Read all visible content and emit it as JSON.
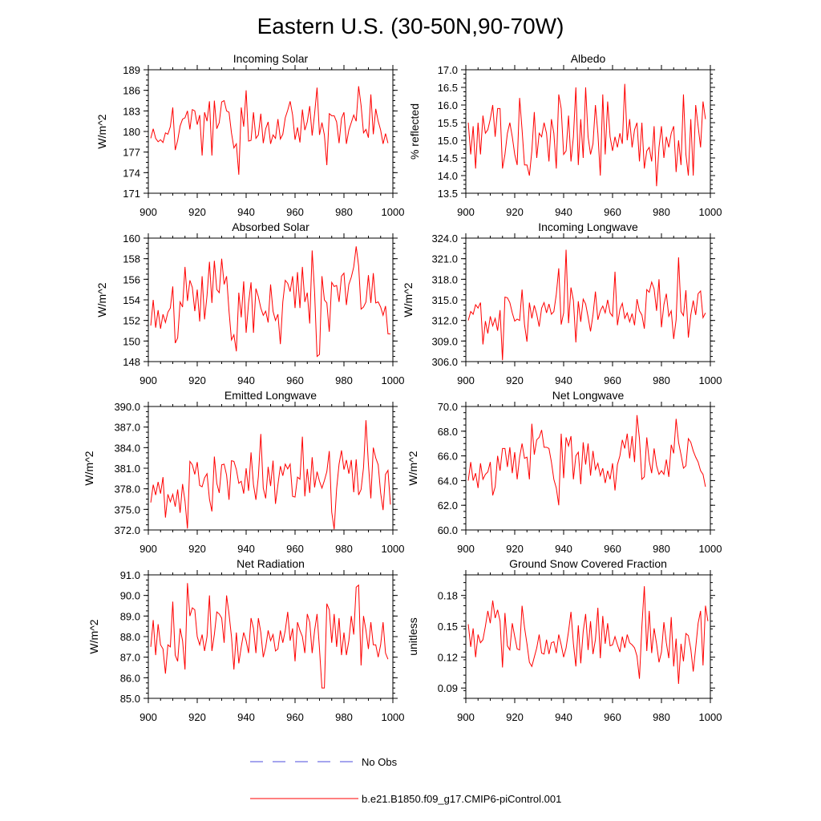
{
  "figure_title": "Eastern U.S. (30-50N,90-70W)",
  "legend": {
    "entries": [
      {
        "label": "No Obs",
        "color": "#4b4bdc",
        "style": "dashed"
      },
      {
        "label": "b.e21.B1850.f09_g17.CMIP6-piControl.001",
        "color": "#ff0000",
        "style": "solid"
      }
    ]
  },
  "chart_data": [
    {
      "type": "line",
      "title": "Incoming Solar",
      "ylabel": "W/m^2",
      "xlim": [
        900,
        1000
      ],
      "xticks": [
        "900",
        "920",
        "940",
        "960",
        "980",
        "1000"
      ],
      "ylim": [
        171,
        189
      ],
      "yticks": [
        "171",
        "174",
        "177",
        "180",
        "183",
        "186",
        "189"
      ],
      "series": [
        {
          "name": "b.e21.B1850.f09_g17.CMIP6-piControl.001",
          "x_start": 901,
          "values": [
            179,
            180.4,
            179,
            178.5,
            178.8,
            178.4,
            179.8,
            179.6,
            180.7,
            183.5,
            177.3,
            178.7,
            180.8,
            181.8,
            182,
            183,
            180.3,
            183.2,
            183,
            181,
            182.4,
            176.5,
            182.8,
            181.5,
            184.4,
            176.5,
            184.5,
            180.4,
            181.3,
            184.3,
            184.5,
            183,
            182.8,
            179.8,
            177.6,
            178.2,
            173.7,
            183.5,
            180.7,
            186,
            178.6,
            178.7,
            182.8,
            179,
            179.5,
            182.6,
            178.3,
            180.4,
            181.4,
            178.2,
            179.5,
            179,
            181.8,
            178.9,
            179.6,
            182,
            183.1,
            184.4,
            182.4,
            178.8,
            180.6,
            178.4,
            183.2,
            180.2,
            181.4,
            183.7,
            179.4,
            182.6,
            186.4,
            179.5,
            181.3,
            179.5,
            175.1,
            182.6,
            182.3,
            182.3,
            181.4,
            178.3,
            181.9,
            182.8,
            178.2,
            180.2,
            181.3,
            182.4,
            181.5,
            186.6,
            183.8,
            179.8,
            180.3,
            179.1,
            185.4,
            179.6,
            183.3,
            181.5,
            180.2,
            178.2,
            179.7,
            178.3
          ]
        }
      ]
    },
    {
      "type": "line",
      "title": "Albedo",
      "ylabel": "% reflected",
      "xlim": [
        900,
        1000
      ],
      "xticks": [
        "900",
        "920",
        "940",
        "960",
        "980",
        "1000"
      ],
      "ylim": [
        13.5,
        17.0
      ],
      "yticks": [
        "13.5",
        "14.0",
        "14.5",
        "15.0",
        "15.5",
        "16.0",
        "16.5",
        "17.0"
      ],
      "series": [
        {
          "name": "b.e21.B1850.f09_g17.CMIP6-piControl.001",
          "x_start": 901,
          "values": [
            15.5,
            14.6,
            15.4,
            14.2,
            15.5,
            14.6,
            15.7,
            15.2,
            15.3,
            15.6,
            16,
            15.1,
            15.9,
            15.9,
            14.2,
            14.6,
            15.2,
            15.5,
            15.1,
            14.6,
            14.3,
            16.2,
            15.3,
            14.3,
            14.3,
            14,
            14.7,
            15.8,
            14.5,
            15.2,
            15.1,
            15.5,
            15.2,
            14.4,
            15.6,
            15.2,
            14.2,
            16.3,
            15.9,
            14.6,
            14.7,
            15.7,
            14.4,
            15.1,
            16.5,
            14.3,
            15.6,
            14.5,
            16.5,
            15.1,
            14.6,
            14.9,
            16,
            15.2,
            14,
            16.3,
            14.6,
            16.1,
            15.1,
            14.7,
            15.1,
            14.8,
            15.2,
            14.9,
            16.6,
            15,
            15.6,
            14.8,
            15.3,
            15.5,
            14.4,
            15.5,
            14.2,
            14.7,
            14.8,
            14.4,
            15.4,
            13.7,
            14.8,
            15.4,
            14.5,
            15.1,
            14.8,
            15.2,
            15.4,
            14.1,
            15,
            14.3,
            16.3,
            14.6,
            14,
            15.6,
            14,
            16,
            15.4,
            14.8,
            16.1,
            15.6
          ]
        }
      ]
    },
    {
      "type": "line",
      "title": "Absorbed Solar",
      "ylabel": "W/m^2",
      "xlim": [
        900,
        1000
      ],
      "xticks": [
        "900",
        "920",
        "940",
        "960",
        "980",
        "1000"
      ],
      "ylim": [
        148,
        160
      ],
      "yticks": [
        "148",
        "150",
        "152",
        "154",
        "156",
        "158",
        "160"
      ],
      "series": [
        {
          "name": "b.e21.B1850.f09_g17.CMIP6-piControl.001",
          "x_start": 901,
          "values": [
            151.5,
            154,
            151.3,
            153,
            151.2,
            152.6,
            151.8,
            152.8,
            153.2,
            155.3,
            149.8,
            150.3,
            153.8,
            153.3,
            157.2,
            153.9,
            155.9,
            155.2,
            152.9,
            155,
            151.9,
            156.3,
            152.1,
            154.4,
            157.7,
            153.7,
            157.8,
            155,
            154.7,
            158,
            155.5,
            156.3,
            152.9,
            150.1,
            150.6,
            149,
            154.7,
            152.3,
            155.8,
            150.8,
            153.7,
            155.7,
            150.8,
            155.1,
            154.3,
            153.2,
            152.5,
            152.9,
            151.8,
            155.5,
            152.9,
            152,
            152.6,
            149.7,
            153.8,
            155.9,
            155.6,
            154.8,
            156.3,
            153.2,
            156.7,
            153.2,
            157.2,
            153.8,
            154.7,
            151.7,
            158.8,
            154.7,
            148.5,
            148.7,
            156.3,
            154,
            153.7,
            150.9,
            155.7,
            155.3,
            155.4,
            153.8,
            156.3,
            156.6,
            153.5,
            155.5,
            156.2,
            157.2,
            159.2,
            157.3,
            153.1,
            153.3,
            153.8,
            156.4,
            153.7,
            156.6,
            153.7,
            153.8,
            153.3,
            152.5,
            153.4,
            150.7,
            150.7
          ]
        }
      ]
    },
    {
      "type": "line",
      "title": "Incoming Longwave",
      "ylabel": "W/m^2",
      "xlim": [
        900,
        1000
      ],
      "xticks": [
        "900",
        "920",
        "940",
        "960",
        "980",
        "1000"
      ],
      "ylim": [
        306.0,
        324.0
      ],
      "yticks": [
        "306.0",
        "309.0",
        "312.0",
        "315.0",
        "318.0",
        "321.0",
        "324.0"
      ],
      "series": [
        {
          "name": "b.e21.B1850.f09_g17.CMIP6-piControl.001",
          "x_start": 901,
          "values": [
            312,
            313.3,
            312.9,
            314.3,
            313.8,
            314.6,
            308.5,
            311.9,
            310.1,
            312.6,
            311.2,
            312.3,
            310.5,
            313.5,
            306.2,
            315.4,
            315.3,
            314.6,
            313.1,
            311.9,
            312.2,
            312,
            316.5,
            311.4,
            308.9,
            314.6,
            312.3,
            314.2,
            312.9,
            311.1,
            313.8,
            314.6,
            313.1,
            314.4,
            312.9,
            313.3,
            315.8,
            319.6,
            311.4,
            313.1,
            322.3,
            311.6,
            316.8,
            314.9,
            308.8,
            314.8,
            311.8,
            315.1,
            314.4,
            312.5,
            310.4,
            312.8,
            316.2,
            312.1,
            313.4,
            314.1,
            313.1,
            315,
            313.1,
            312.6,
            319.1,
            311.3,
            313.6,
            314.5,
            312.3,
            313.1,
            311.8,
            313,
            311.3,
            315.1,
            313.4,
            312.8,
            310.8,
            316.5,
            316.1,
            317.6,
            316.6,
            313.4,
            318,
            311,
            314.3,
            315.9,
            312.6,
            313.4,
            309.3,
            312.1,
            321.2,
            313.3,
            312.7,
            316.4,
            309.5,
            312.8,
            314.9,
            312.8,
            315.9,
            316.3,
            312.4,
            313.1
          ]
        }
      ]
    },
    {
      "type": "line",
      "title": "Emitted Longwave",
      "ylabel": "W/m^2",
      "xlim": [
        900,
        1000
      ],
      "xticks": [
        "900",
        "920",
        "940",
        "960",
        "980",
        "1000"
      ],
      "ylim": [
        372.0,
        390.0
      ],
      "yticks": [
        "372.0",
        "375.0",
        "378.0",
        "381.0",
        "384.0",
        "387.0",
        "390.0"
      ],
      "series": [
        {
          "name": "b.e21.B1850.f09_g17.CMIP6-piControl.001",
          "x_start": 901,
          "values": [
            376,
            378.6,
            377.1,
            379,
            377.3,
            379.7,
            373.8,
            377.2,
            376.1,
            377.2,
            375.4,
            377.9,
            374.5,
            378.7,
            376.2,
            372.2,
            382,
            381.5,
            380.1,
            381.9,
            378.5,
            378.3,
            379.6,
            380.2,
            376.5,
            374.7,
            382.7,
            378.8,
            377.4,
            381.5,
            381.6,
            380,
            376.4,
            382.1,
            382,
            380.8,
            378.8,
            379.1,
            377.3,
            381,
            377.7,
            383.3,
            378.6,
            376.4,
            379.8,
            386,
            378.1,
            376.6,
            381.2,
            378.4,
            382.1,
            375.8,
            378.6,
            381.3,
            379.9,
            381.6,
            380.9,
            381.6,
            376.9,
            376.8,
            379.7,
            379.4,
            385.6,
            376.9,
            380.9,
            377.4,
            382.6,
            378.2,
            380.5,
            379.1,
            378.1,
            379.2,
            380.5,
            383.5,
            374.6,
            372.1,
            378,
            381.6,
            383.6,
            380.8,
            382.2,
            380.2,
            382.2,
            377.5,
            382.3,
            377.1,
            377.9,
            381.1,
            388,
            381.6,
            376.6,
            384,
            382.5,
            381.5,
            377.4,
            374.9,
            380.1,
            380.7,
            375.7
          ]
        }
      ]
    },
    {
      "type": "line",
      "title": "Net Longwave",
      "ylabel": "W/m^2",
      "xlim": [
        900,
        1000
      ],
      "xticks": [
        "900",
        "920",
        "940",
        "960",
        "980",
        "1000"
      ],
      "ylim": [
        60.0,
        70.0
      ],
      "yticks": [
        "60.0",
        "62.0",
        "64.0",
        "66.0",
        "68.0",
        "70.0"
      ],
      "series": [
        {
          "name": "b.e21.B1850.f09_g17.CMIP6-piControl.001",
          "x_start": 901,
          "values": [
            64,
            65.5,
            64,
            64.6,
            63.4,
            65.4,
            64.1,
            64.5,
            64.7,
            65.5,
            62.8,
            63.5,
            66,
            64.8,
            66.6,
            66.6,
            65.1,
            66.7,
            64.6,
            66.3,
            64.1,
            65.9,
            67,
            65.8,
            65.9,
            64.1,
            68.6,
            66.1,
            67.3,
            67.5,
            68.1,
            66.7,
            66.7,
            66.6,
            65.5,
            64.1,
            63.4,
            62,
            67.8,
            64.2,
            67.5,
            66.8,
            67.6,
            64.1,
            66,
            66.3,
            63.7,
            67.1,
            65.3,
            67,
            64.4,
            66.4,
            64.9,
            65.4,
            64.4,
            65,
            63.8,
            64.8,
            64.1,
            65.4,
            63.2,
            65.3,
            66,
            67.3,
            66.6,
            67.8,
            65.8,
            67.6,
            65.5,
            69.3,
            67.4,
            64.1,
            64.3,
            67.5,
            65.6,
            64.6,
            66.6,
            65.2,
            64.5,
            64.8,
            64.5,
            65.7,
            64.3,
            66.9,
            66.2,
            69,
            67.1,
            66.1,
            65,
            65.2,
            67.4,
            67.1,
            66.4,
            65.9,
            65.5,
            64.8,
            64.5,
            63.5
          ]
        }
      ]
    },
    {
      "type": "line",
      "title": "Net Radiation",
      "ylabel": "W/m^2",
      "xlim": [
        900,
        1000
      ],
      "xticks": [
        "900",
        "920",
        "940",
        "960",
        "980",
        "1000"
      ],
      "ylim": [
        85.0,
        91.0
      ],
      "yticks": [
        "85.0",
        "86.0",
        "87.0",
        "88.0",
        "89.0",
        "90.0",
        "91.0"
      ],
      "series": [
        {
          "name": "b.e21.B1850.f09_g17.CMIP6-piControl.001",
          "x_start": 901,
          "values": [
            87.5,
            88.8,
            87.1,
            88.6,
            87.6,
            87.4,
            86.2,
            87.6,
            87.5,
            89.7,
            87.1,
            86.8,
            88.4,
            87.8,
            86.4,
            90.6,
            89,
            89.4,
            89.3,
            88,
            87.6,
            88.1,
            87.3,
            88,
            90,
            87.3,
            88.1,
            89.2,
            89.1,
            88.9,
            87.7,
            90,
            89.1,
            88,
            86.4,
            88.2,
            86.7,
            87.5,
            88.2,
            87.8,
            87.2,
            88.9,
            88.4,
            87.2,
            88.9,
            88.2,
            87,
            87.5,
            88.3,
            87.8,
            88.1,
            87.3,
            87.4,
            88.3,
            87.7,
            88.3,
            89.2,
            87.8,
            88.4,
            86.8,
            88.7,
            88.3,
            88,
            87.2,
            89.1,
            88.7,
            87.2,
            88.3,
            89.1,
            87.4,
            85.5,
            85.5,
            89.6,
            89.3,
            87.7,
            89.1,
            87.5,
            88.9,
            87.1,
            88.2,
            87.1,
            87.8,
            89,
            88.1,
            90.4,
            90.5,
            86.6,
            89,
            88.3,
            87.4,
            88.7,
            87.6,
            87.6,
            87,
            87.6,
            88.7,
            87.2,
            86.9
          ]
        }
      ]
    },
    {
      "type": "line",
      "title": "Ground Snow Covered Fraction",
      "ylabel": "unitless",
      "xlim": [
        900,
        1000
      ],
      "xticks": [
        "900",
        "920",
        "940",
        "960",
        "980",
        "1000"
      ],
      "ylim": [
        0.08,
        0.2
      ],
      "yticks": [
        "0.09",
        "0.12",
        "0.15",
        "0.18"
      ],
      "series": [
        {
          "name": "b.e21.B1850.f09_g17.CMIP6-piControl.001",
          "x_start": 901,
          "values": [
            0.152,
            0.13,
            0.148,
            0.12,
            0.142,
            0.134,
            0.137,
            0.15,
            0.165,
            0.153,
            0.175,
            0.158,
            0.166,
            0.155,
            0.11,
            0.163,
            0.131,
            0.127,
            0.153,
            0.14,
            0.128,
            0.127,
            0.17,
            0.149,
            0.133,
            0.115,
            0.111,
            0.12,
            0.129,
            0.142,
            0.124,
            0.123,
            0.137,
            0.123,
            0.134,
            0.135,
            0.124,
            0.142,
            0.132,
            0.12,
            0.129,
            0.145,
            0.164,
            0.133,
            0.111,
            0.151,
            0.114,
            0.145,
            0.162,
            0.127,
            0.155,
            0.123,
            0.137,
            0.168,
            0.119,
            0.16,
            0.133,
            0.153,
            0.131,
            0.132,
            0.14,
            0.132,
            0.125,
            0.14,
            0.129,
            0.142,
            0.134,
            0.132,
            0.129,
            0.121,
            0.099,
            0.15,
            0.189,
            0.126,
            0.165,
            0.124,
            0.148,
            0.133,
            0.115,
            0.125,
            0.154,
            0.134,
            0.119,
            0.159,
            0.111,
            0.138,
            0.094,
            0.133,
            0.116,
            0.143,
            0.141,
            0.128,
            0.106,
            0.129,
            0.153,
            0.165,
            0.112,
            0.17,
            0.155
          ]
        }
      ]
    }
  ]
}
